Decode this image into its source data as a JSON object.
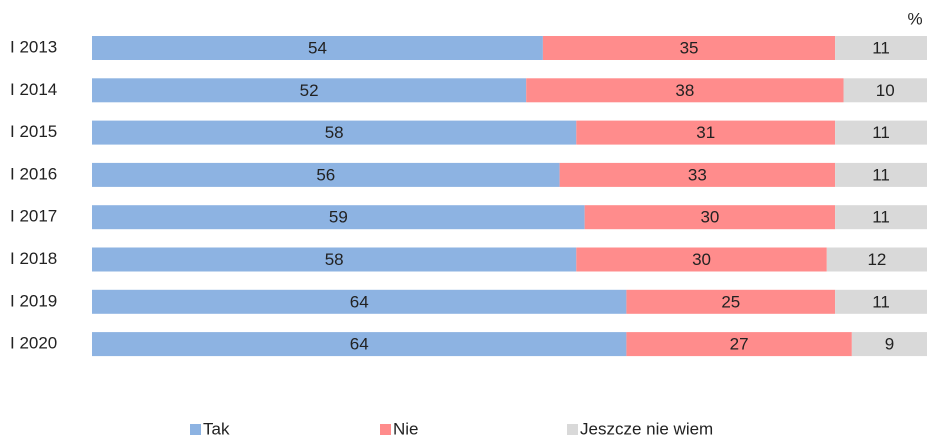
{
  "chart_data": {
    "type": "stacked_bar_horizontal",
    "unit": "%",
    "categories": [
      "I 2013",
      "I 2014",
      "I 2015",
      "I 2016",
      "I 2017",
      "I 2018",
      "I 2019",
      "I 2020"
    ],
    "series": [
      {
        "name": "Tak",
        "color": "#8db3e2",
        "values": [
          54,
          52,
          58,
          56,
          59,
          58,
          64,
          64
        ]
      },
      {
        "name": "Nie",
        "color": "#ff8c8c",
        "values": [
          35,
          38,
          31,
          33,
          30,
          30,
          25,
          27
        ]
      },
      {
        "name": "Jeszcze nie wiem",
        "color": "#d9d9d9",
        "values": [
          11,
          10,
          11,
          11,
          11,
          12,
          11,
          9
        ]
      }
    ],
    "xlim": [
      0,
      100
    ],
    "legend": "bottom"
  }
}
